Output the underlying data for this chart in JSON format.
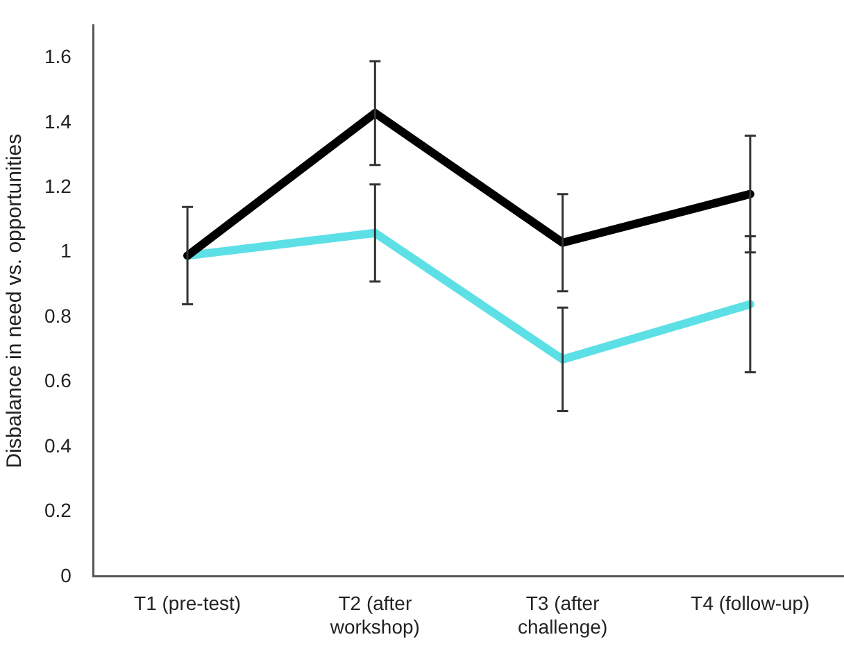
{
  "chart_data": {
    "type": "line",
    "ylabel": "Disbalance in need vs. opportunities",
    "categories": [
      "T1 (pre-test)",
      "T2 (after workshop)",
      "T3 (after challenge)",
      "T4 (follow-up)"
    ],
    "series": [
      {
        "color": "#000000",
        "values": [
          0.99,
          1.43,
          1.03,
          1.18
        ],
        "errors": [
          [
            0.84,
            1.14
          ],
          [
            1.27,
            1.59
          ],
          [
            0.88,
            1.18
          ],
          [
            1.0,
            1.36
          ]
        ]
      },
      {
        "color": "#5ce0e6",
        "values": [
          0.99,
          1.06,
          0.67,
          0.84
        ],
        "errors": [
          null,
          [
            0.91,
            1.21
          ],
          [
            0.51,
            0.83
          ],
          [
            0.63,
            1.05
          ]
        ]
      }
    ],
    "ylim": [
      0,
      1.7
    ],
    "yticks": [
      0,
      0.2,
      0.4,
      0.6,
      0.8,
      1,
      1.2,
      1.4,
      1.6
    ],
    "grid": false,
    "legend": false,
    "marker": "none",
    "line_style": "solid"
  }
}
